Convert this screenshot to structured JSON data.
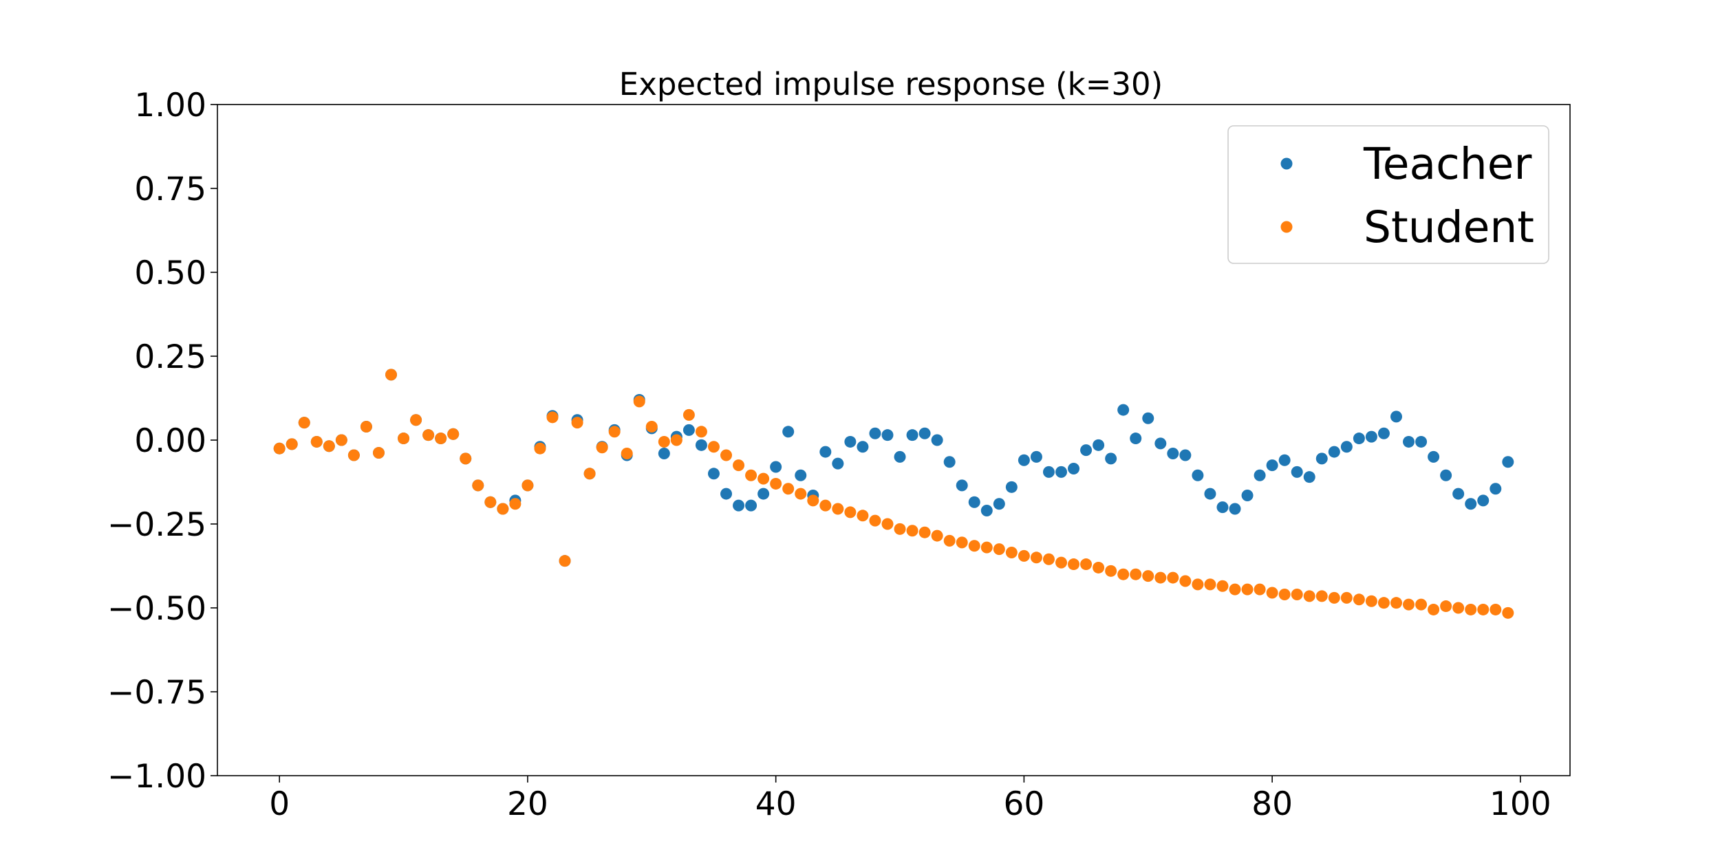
{
  "chart_data": {
    "type": "scatter",
    "title": "Expected impulse response (k=30)",
    "xlabel": "",
    "ylabel": "",
    "xlim": [
      -5,
      104
    ],
    "ylim": [
      -1.0,
      1.0
    ],
    "xticks": [
      0,
      20,
      40,
      60,
      80,
      100
    ],
    "xtick_labels": [
      "0",
      "20",
      "40",
      "60",
      "80",
      "100"
    ],
    "yticks": [
      1.0,
      0.75,
      0.5,
      0.25,
      0.0,
      -0.25,
      -0.5,
      -0.75,
      -1.0
    ],
    "ytick_labels": [
      "1.00",
      "0.75",
      "0.50",
      "0.25",
      "0.00",
      "−0.25",
      "−0.50",
      "−0.75",
      "−1.00"
    ],
    "grid": false,
    "legend": {
      "placement": "top-right"
    },
    "x": [
      0,
      1,
      2,
      3,
      4,
      5,
      6,
      7,
      8,
      9,
      10,
      11,
      12,
      13,
      14,
      15,
      16,
      17,
      18,
      19,
      20,
      21,
      22,
      23,
      24,
      25,
      26,
      27,
      28,
      29,
      30,
      31,
      32,
      33,
      34,
      35,
      36,
      37,
      38,
      39,
      40,
      41,
      42,
      43,
      44,
      45,
      46,
      47,
      48,
      49,
      50,
      51,
      52,
      53,
      54,
      55,
      56,
      57,
      58,
      59,
      60,
      61,
      62,
      63,
      64,
      65,
      66,
      67,
      68,
      69,
      70,
      71,
      72,
      73,
      74,
      75,
      76,
      77,
      78,
      79,
      80,
      81,
      82,
      83,
      84,
      85,
      86,
      87,
      88,
      89,
      90,
      91,
      92,
      93,
      94,
      95,
      96,
      97,
      98,
      99
    ],
    "series": [
      {
        "name": "Teacher",
        "color": "#1f77b4",
        "values": [
          -0.025,
          -0.012,
          0.052,
          -0.005,
          -0.018,
          0.0,
          -0.045,
          0.04,
          -0.038,
          0.195,
          0.005,
          0.06,
          0.015,
          0.005,
          0.018,
          -0.055,
          -0.135,
          -0.185,
          -0.205,
          -0.18,
          -0.135,
          -0.02,
          0.072,
          -0.36,
          0.06,
          -0.1,
          -0.02,
          0.03,
          -0.045,
          0.12,
          0.035,
          -0.04,
          0.01,
          0.03,
          -0.015,
          -0.1,
          -0.16,
          -0.195,
          -0.195,
          -0.16,
          -0.08,
          0.025,
          -0.105,
          -0.165,
          -0.035,
          -0.07,
          -0.005,
          -0.02,
          0.02,
          0.015,
          -0.05,
          0.015,
          0.02,
          0.0,
          -0.065,
          -0.135,
          -0.185,
          -0.21,
          -0.19,
          -0.14,
          -0.06,
          -0.05,
          -0.095,
          -0.095,
          -0.085,
          -0.03,
          -0.015,
          -0.055,
          0.09,
          0.005,
          0.065,
          -0.01,
          -0.04,
          -0.045,
          -0.105,
          -0.16,
          -0.2,
          -0.205,
          -0.165,
          -0.105,
          -0.075,
          -0.06,
          -0.095,
          -0.11,
          -0.055,
          -0.035,
          -0.02,
          0.005,
          0.01,
          0.02,
          0.07,
          -0.005,
          -0.005,
          -0.05,
          -0.105,
          -0.16,
          -0.19,
          -0.18,
          -0.145,
          -0.065
        ]
      },
      {
        "name": "Student",
        "color": "#ff7f0e",
        "values": [
          -0.025,
          -0.012,
          0.052,
          -0.005,
          -0.018,
          0.0,
          -0.045,
          0.04,
          -0.038,
          0.195,
          0.005,
          0.06,
          0.015,
          0.005,
          0.018,
          -0.055,
          -0.135,
          -0.185,
          -0.205,
          -0.19,
          -0.135,
          -0.025,
          0.068,
          -0.36,
          0.052,
          -0.1,
          -0.022,
          0.025,
          -0.04,
          0.115,
          0.04,
          -0.005,
          0.0,
          0.075,
          0.025,
          -0.02,
          -0.045,
          -0.075,
          -0.105,
          -0.115,
          -0.13,
          -0.145,
          -0.16,
          -0.18,
          -0.195,
          -0.205,
          -0.215,
          -0.225,
          -0.24,
          -0.25,
          -0.265,
          -0.27,
          -0.275,
          -0.285,
          -0.3,
          -0.305,
          -0.315,
          -0.32,
          -0.325,
          -0.335,
          -0.345,
          -0.35,
          -0.355,
          -0.365,
          -0.37,
          -0.37,
          -0.38,
          -0.39,
          -0.4,
          -0.4,
          -0.405,
          -0.41,
          -0.41,
          -0.42,
          -0.43,
          -0.43,
          -0.435,
          -0.445,
          -0.445,
          -0.445,
          -0.455,
          -0.46,
          -0.46,
          -0.465,
          -0.465,
          -0.47,
          -0.47,
          -0.475,
          -0.48,
          -0.485,
          -0.485,
          -0.49,
          -0.49,
          -0.505,
          -0.495,
          -0.5,
          -0.505,
          -0.505,
          -0.505,
          -0.515
        ]
      }
    ]
  }
}
